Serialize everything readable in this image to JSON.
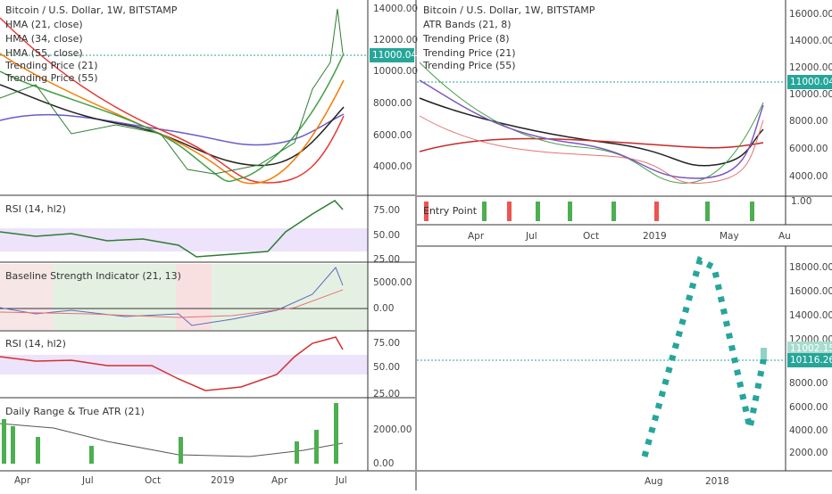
{
  "left": {
    "main": {
      "legend": [
        "Bitcoin / U.S. Dollar, 1W, BITSTAMP",
        "HMA (21, close)",
        "HMA (34, close)",
        "HMA (55, close)",
        "Trending Price (21)",
        "Trending Price (55)"
      ],
      "axis": [
        "14000.00",
        "12000.00",
        "10000.00",
        "8000.00",
        "6000.00",
        "4000.00"
      ],
      "price": "11000.04"
    },
    "rsi1": {
      "legend": "RSI (14, hl2)",
      "axis": [
        "75.00",
        "50.00",
        "25.00"
      ]
    },
    "baseline": {
      "legend": "Baseline Strength Indicator (21, 13)",
      "axis": [
        "5000.00",
        "0.00"
      ]
    },
    "rsi2": {
      "legend": "RSI (14, hl2)",
      "axis": [
        "75.00",
        "50.00",
        "25.00"
      ]
    },
    "range": {
      "legend": "Daily Range & True ATR (21)",
      "axis": [
        "2000.00",
        "0.00"
      ]
    },
    "time": [
      "Apr",
      "Jul",
      "Oct",
      "2019",
      "Apr",
      "Jul"
    ]
  },
  "right_top": {
    "legend": [
      "Bitcoin / U.S. Dollar, 1W, BITSTAMP",
      "ATR Bands (21, 8)",
      "Trending Price (8)",
      "Trending Price (21)",
      "Trending Price (55)"
    ],
    "axis": [
      "16000.00",
      "14000.00",
      "12000.00",
      "10000.00",
      "8000.00",
      "6000.00",
      "4000.00"
    ],
    "price": "11000.04",
    "entry": {
      "legend": "Entry Point",
      "axis": "1.00"
    },
    "time": [
      "Apr",
      "Jul",
      "Oct",
      "2019",
      "May",
      "Au"
    ]
  },
  "right_bottom": {
    "axis": [
      "18000.00",
      "16000.00",
      "14000.00",
      "12000.00",
      "8000.00",
      "6000.00",
      "4000.00",
      "2000.00"
    ],
    "price_labels": [
      "11002.15",
      "10116.26"
    ],
    "time": [
      "Aug",
      "2018"
    ]
  }
}
